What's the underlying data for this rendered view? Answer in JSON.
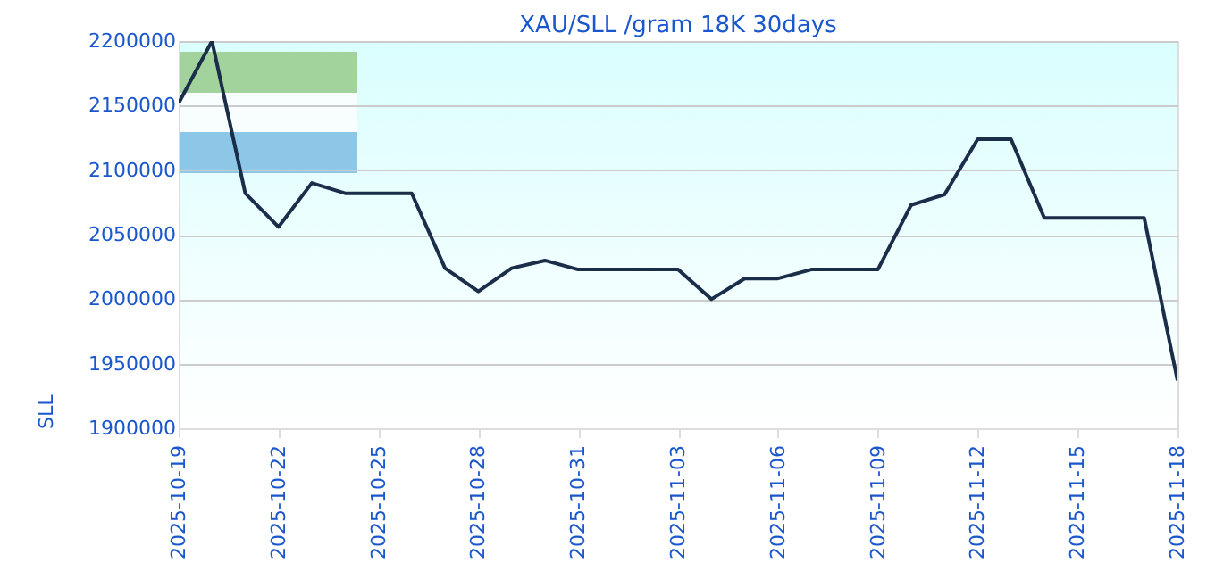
{
  "chart_data": {
    "type": "line",
    "title": "XAU/SLL /gram 18K 30days",
    "ylabel": "SLL",
    "x": [
      "2025-10-19",
      "2025-10-20",
      "2025-10-21",
      "2025-10-22",
      "2025-10-23",
      "2025-10-24",
      "2025-10-25",
      "2025-10-26",
      "2025-10-27",
      "2025-10-28",
      "2025-10-29",
      "2025-10-30",
      "2025-10-31",
      "2025-11-01",
      "2025-11-02",
      "2025-11-03",
      "2025-11-04",
      "2025-11-05",
      "2025-11-06",
      "2025-11-07",
      "2025-11-08",
      "2025-11-09",
      "2025-11-10",
      "2025-11-11",
      "2025-11-12",
      "2025-11-13",
      "2025-11-14",
      "2025-11-15",
      "2025-11-16",
      "2025-11-17",
      "2025-11-18"
    ],
    "series": [
      {
        "color": "#1a2e4a",
        "values": [
          2152000,
          2200000,
          2082000,
          2056000,
          2090000,
          2082000,
          2082000,
          2082000,
          2024000,
          2006000,
          2024000,
          2030000,
          2023000,
          2023000,
          2023000,
          2023000,
          2000000,
          2016000,
          2016000,
          2023000,
          2023000,
          2023000,
          2073000,
          2081000,
          2124000,
          2124000,
          2063000,
          2063000,
          2063000,
          2063000,
          1937000
        ]
      }
    ],
    "xlim": [
      "2025-10-19",
      "2025-11-18"
    ],
    "xticks": [
      "2025-10-19",
      "2025-10-22",
      "2025-10-25",
      "2025-10-28",
      "2025-10-31",
      "2025-11-03",
      "2025-11-06",
      "2025-11-09",
      "2025-11-12",
      "2025-11-15",
      "2025-11-18"
    ],
    "ylim": [
      1900000,
      2200000
    ],
    "yticks": [
      1900000,
      1950000,
      2000000,
      2050000,
      2100000,
      2150000,
      2200000
    ],
    "grid": "y",
    "marker": "none",
    "line_style": "solid"
  }
}
